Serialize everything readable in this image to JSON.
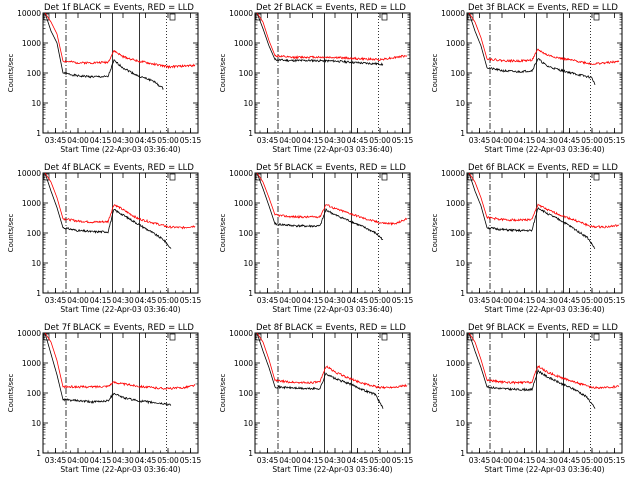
{
  "figure": {
    "xlabel": "Start Time (22-Apr-03 03:36:40)",
    "ylabel": "Counts/sec",
    "x_ticks": [
      "03:45",
      "04:00",
      "04:15",
      "04:30",
      "04:45",
      "05:00",
      "05:15"
    ],
    "y_ticks": [
      "1",
      "10",
      "100",
      "1000",
      "10000"
    ],
    "colors": {
      "events": "#000000",
      "lld": "#ff0000"
    }
  },
  "chart_data": [
    {
      "type": "line",
      "title": "Det 1f BLACK = Events, RED = LLD",
      "xlabel": "Start Time (22-Apr-03 03:36:40)",
      "ylabel": "Counts/sec",
      "yscale": "log",
      "ylim": [
        1,
        10000
      ],
      "xlim": [
        "03:36:40",
        "05:20:00"
      ],
      "series": [
        {
          "name": "Events",
          "color": "#000000",
          "x": [
            "03:38",
            "03:42",
            "03:46",
            "03:50",
            "04:00",
            "04:10",
            "04:20",
            "04:24",
            "04:30",
            "04:40",
            "04:50",
            "04:55",
            "04:57"
          ],
          "y": [
            10000,
            2500,
            1000,
            100,
            80,
            75,
            75,
            260,
            150,
            80,
            55,
            35,
            30
          ]
        },
        {
          "name": "LLD",
          "color": "#ff0000",
          "x": [
            "03:38",
            "03:42",
            "03:46",
            "03:50",
            "04:00",
            "04:10",
            "04:20",
            "04:24",
            "04:30",
            "04:40",
            "04:50",
            "05:00",
            "05:10",
            "05:18"
          ],
          "y": [
            10000,
            5000,
            2000,
            250,
            220,
            220,
            230,
            550,
            350,
            250,
            200,
            160,
            170,
            180
          ]
        }
      ]
    },
    {
      "type": "line",
      "title": "Det 2f BLACK = Events, RED = LLD",
      "xlabel": "Start Time (22-Apr-03 03:36:40)",
      "ylabel": "Counts/sec",
      "yscale": "log",
      "ylim": [
        1,
        10000
      ],
      "xlim": [
        "03:36:40",
        "05:20:00"
      ],
      "series": [
        {
          "name": "Events",
          "color": "#000000",
          "x": [
            "03:38",
            "03:42",
            "03:46",
            "03:50",
            "04:00",
            "04:15",
            "04:30",
            "04:45",
            "05:00",
            "05:02"
          ],
          "y": [
            10000,
            3000,
            800,
            280,
            260,
            260,
            250,
            220,
            200,
            190
          ]
        },
        {
          "name": "LLD",
          "color": "#ff0000",
          "x": [
            "03:38",
            "03:42",
            "03:46",
            "03:50",
            "04:00",
            "04:15",
            "04:30",
            "04:45",
            "05:00",
            "05:18"
          ],
          "y": [
            10000,
            5000,
            1200,
            380,
            330,
            340,
            330,
            300,
            280,
            380
          ]
        }
      ]
    },
    {
      "type": "line",
      "title": "Det 3f BLACK = Events, RED = LLD",
      "xlabel": "Start Time (22-Apr-03 03:36:40)",
      "ylabel": "Counts/sec",
      "yscale": "log",
      "ylim": [
        1,
        10000
      ],
      "xlim": [
        "03:36:40",
        "05:20:00"
      ],
      "series": [
        {
          "name": "Events",
          "color": "#000000",
          "x": [
            "03:38",
            "03:42",
            "03:46",
            "03:50",
            "04:00",
            "04:10",
            "04:20",
            "04:24",
            "04:30",
            "04:40",
            "04:50",
            "05:00",
            "05:02"
          ],
          "y": [
            10000,
            2500,
            800,
            150,
            120,
            110,
            120,
            300,
            170,
            120,
            90,
            70,
            40
          ]
        },
        {
          "name": "LLD",
          "color": "#ff0000",
          "x": [
            "03:38",
            "03:42",
            "03:46",
            "03:50",
            "04:00",
            "04:10",
            "04:20",
            "04:24",
            "04:30",
            "04:40",
            "04:50",
            "05:00",
            "05:10",
            "05:18"
          ],
          "y": [
            10000,
            5000,
            1500,
            300,
            260,
            250,
            270,
            600,
            400,
            300,
            250,
            200,
            220,
            240
          ]
        }
      ]
    },
    {
      "type": "line",
      "title": "Det 4f BLACK = Events, RED = LLD",
      "xlabel": "Start Time (22-Apr-03 03:36:40)",
      "ylabel": "Counts/sec",
      "yscale": "log",
      "ylim": [
        1,
        10000
      ],
      "xlim": [
        "03:36:40",
        "05:20:00"
      ],
      "series": [
        {
          "name": "Events",
          "color": "#000000",
          "x": [
            "03:38",
            "03:42",
            "03:46",
            "03:50",
            "04:00",
            "04:10",
            "04:20",
            "04:24",
            "04:30",
            "04:40",
            "04:50",
            "04:57",
            "05:02"
          ],
          "y": [
            10000,
            2500,
            700,
            150,
            120,
            110,
            110,
            600,
            400,
            200,
            100,
            60,
            30
          ]
        },
        {
          "name": "LLD",
          "color": "#ff0000",
          "x": [
            "03:38",
            "03:42",
            "03:46",
            "03:50",
            "04:00",
            "04:10",
            "04:20",
            "04:24",
            "04:30",
            "04:40",
            "04:50",
            "05:00",
            "05:10",
            "05:18"
          ],
          "y": [
            10000,
            5000,
            1500,
            300,
            250,
            230,
            240,
            900,
            600,
            300,
            220,
            160,
            150,
            170
          ]
        }
      ]
    },
    {
      "type": "line",
      "title": "Det 5f BLACK = Events, RED = LLD",
      "xlabel": "Start Time (22-Apr-03 03:36:40)",
      "ylabel": "Counts/sec",
      "yscale": "log",
      "ylim": [
        1,
        10000
      ],
      "xlim": [
        "03:36:40",
        "05:20:00"
      ],
      "series": [
        {
          "name": "Events",
          "color": "#000000",
          "x": [
            "03:38",
            "03:42",
            "03:46",
            "03:50",
            "04:00",
            "04:10",
            "04:20",
            "04:24",
            "04:30",
            "04:40",
            "04:50",
            "04:57",
            "05:02"
          ],
          "y": [
            10000,
            3000,
            800,
            200,
            180,
            170,
            170,
            600,
            400,
            250,
            150,
            100,
            60
          ]
        },
        {
          "name": "LLD",
          "color": "#ff0000",
          "x": [
            "03:38",
            "03:42",
            "03:46",
            "03:50",
            "04:00",
            "04:10",
            "04:20",
            "04:24",
            "04:30",
            "04:40",
            "04:50",
            "05:00",
            "05:10",
            "05:18"
          ],
          "y": [
            10000,
            5000,
            1500,
            400,
            350,
            340,
            350,
            900,
            650,
            450,
            300,
            220,
            200,
            300
          ]
        }
      ]
    },
    {
      "type": "line",
      "title": "Det 6f BLACK = Events, RED = LLD",
      "xlabel": "Start Time (22-Apr-03 03:36:40)",
      "ylabel": "Counts/sec",
      "yscale": "log",
      "ylim": [
        1,
        10000
      ],
      "xlim": [
        "03:36:40",
        "05:20:00"
      ],
      "series": [
        {
          "name": "Events",
          "color": "#000000",
          "x": [
            "03:38",
            "03:42",
            "03:46",
            "03:50",
            "04:00",
            "04:10",
            "04:20",
            "04:24",
            "04:30",
            "04:40",
            "04:50",
            "04:57",
            "05:02"
          ],
          "y": [
            10000,
            2500,
            800,
            150,
            130,
            120,
            120,
            700,
            450,
            250,
            120,
            70,
            30
          ]
        },
        {
          "name": "LLD",
          "color": "#ff0000",
          "x": [
            "03:38",
            "03:42",
            "03:46",
            "03:50",
            "04:00",
            "04:10",
            "04:20",
            "04:24",
            "04:30",
            "04:40",
            "04:50",
            "05:00",
            "05:10",
            "05:18"
          ],
          "y": [
            10000,
            5000,
            1500,
            330,
            280,
            270,
            280,
            900,
            600,
            380,
            250,
            160,
            160,
            180
          ]
        }
      ]
    },
    {
      "type": "line",
      "title": "Det 7f BLACK = Events, RED = LLD",
      "xlabel": "Start Time (22-Apr-03 03:36:40)",
      "ylabel": "Counts/sec",
      "yscale": "log",
      "ylim": [
        1,
        10000
      ],
      "xlim": [
        "03:36:40",
        "05:20:00"
      ],
      "series": [
        {
          "name": "Events",
          "color": "#000000",
          "x": [
            "03:38",
            "03:42",
            "03:46",
            "03:50",
            "04:00",
            "04:10",
            "04:20",
            "04:24",
            "04:30",
            "04:40",
            "04:50",
            "05:00",
            "05:02"
          ],
          "y": [
            10000,
            2000,
            400,
            60,
            55,
            50,
            55,
            100,
            70,
            55,
            48,
            42,
            40
          ]
        },
        {
          "name": "LLD",
          "color": "#ff0000",
          "x": [
            "03:38",
            "03:42",
            "03:46",
            "03:50",
            "04:00",
            "04:10",
            "04:20",
            "04:24",
            "04:30",
            "04:40",
            "04:50",
            "05:00",
            "05:10",
            "05:18"
          ],
          "y": [
            10000,
            5000,
            1200,
            160,
            160,
            160,
            170,
            230,
            200,
            170,
            150,
            140,
            150,
            180
          ]
        }
      ]
    },
    {
      "type": "line",
      "title": "Det 8f BLACK = Events, RED = LLD",
      "xlabel": "Start Time (22-Apr-03 03:36:40)",
      "ylabel": "Counts/sec",
      "yscale": "log",
      "ylim": [
        1,
        10000
      ],
      "xlim": [
        "03:36:40",
        "05:20:00"
      ],
      "series": [
        {
          "name": "Events",
          "color": "#000000",
          "x": [
            "03:38",
            "03:42",
            "03:46",
            "03:50",
            "04:00",
            "04:10",
            "04:20",
            "04:24",
            "04:30",
            "04:40",
            "04:50",
            "04:57",
            "05:02"
          ],
          "y": [
            10000,
            2500,
            700,
            160,
            150,
            140,
            140,
            450,
            300,
            200,
            120,
            90,
            30
          ]
        },
        {
          "name": "LLD",
          "color": "#ff0000",
          "x": [
            "03:38",
            "03:42",
            "03:46",
            "03:50",
            "04:00",
            "04:10",
            "04:20",
            "04:24",
            "04:30",
            "04:40",
            "04:50",
            "05:00",
            "05:10",
            "05:18"
          ],
          "y": [
            10000,
            5000,
            1300,
            260,
            230,
            220,
            230,
            800,
            500,
            300,
            200,
            150,
            160,
            180
          ]
        }
      ]
    },
    {
      "type": "line",
      "title": "Det 9f BLACK = Events, RED = LLD",
      "xlabel": "Start Time (22-Apr-03 03:36:40)",
      "ylabel": "Counts/sec",
      "yscale": "log",
      "ylim": [
        1,
        10000
      ],
      "xlim": [
        "03:36:40",
        "05:20:00"
      ],
      "series": [
        {
          "name": "Events",
          "color": "#000000",
          "x": [
            "03:38",
            "03:42",
            "03:46",
            "03:50",
            "04:00",
            "04:10",
            "04:20",
            "04:24",
            "04:30",
            "04:40",
            "04:50",
            "04:57",
            "05:02"
          ],
          "y": [
            10000,
            2500,
            700,
            160,
            140,
            130,
            130,
            550,
            350,
            200,
            120,
            70,
            30
          ]
        },
        {
          "name": "LLD",
          "color": "#ff0000",
          "x": [
            "03:38",
            "03:42",
            "03:46",
            "03:50",
            "04:00",
            "04:10",
            "04:20",
            "04:24",
            "04:30",
            "04:40",
            "04:50",
            "05:00",
            "05:10",
            "05:18"
          ],
          "y": [
            10000,
            5000,
            1300,
            270,
            230,
            220,
            230,
            800,
            500,
            320,
            220,
            150,
            150,
            170
          ]
        }
      ]
    }
  ]
}
